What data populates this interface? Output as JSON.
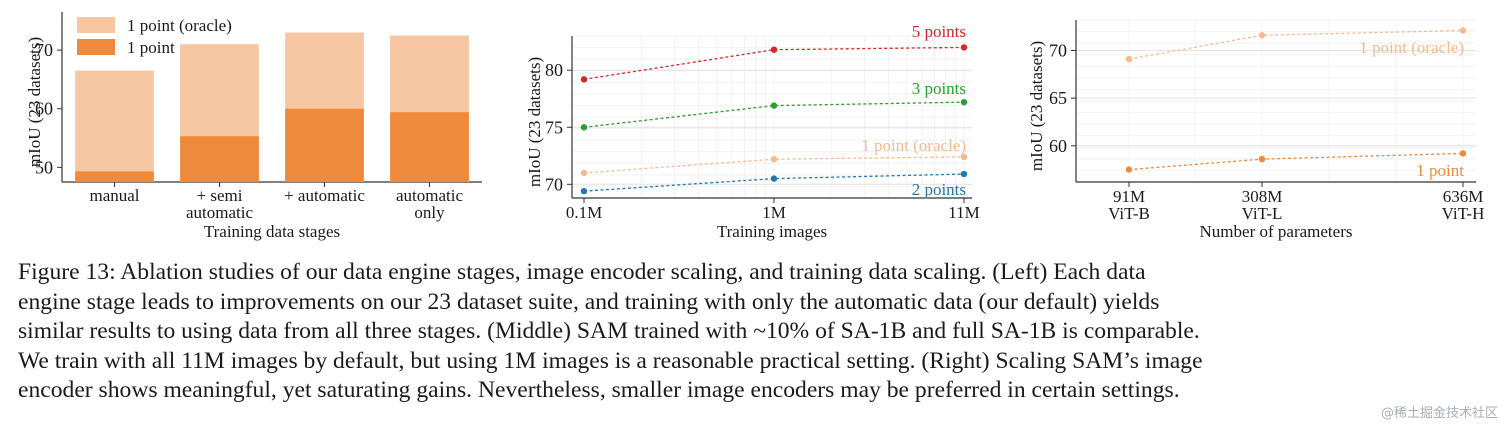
{
  "chart_data": [
    {
      "type": "bar",
      "categories": [
        "manual",
        "+ semi\nautomatic",
        "+ automatic",
        "automatic\nonly"
      ],
      "series": [
        {
          "name": "1 point (oracle)",
          "values": [
            66.5,
            71.0,
            73.0,
            72.5
          ],
          "color": "#f7c6a3"
        },
        {
          "name": "1 point",
          "values": [
            49.3,
            55.3,
            60.0,
            59.4
          ],
          "color": "#ef8a3d"
        }
      ],
      "title": "",
      "xlabel": "Training data stages",
      "ylabel": "mIoU (23 datasets)",
      "ylim": [
        47.5,
        76.5
      ],
      "yticks": [
        50,
        60,
        70
      ],
      "grid": false,
      "legend": "top-left"
    },
    {
      "type": "line",
      "x": [
        "0.1M",
        "1M",
        "11M"
      ],
      "series": [
        {
          "name": "5 points",
          "values": [
            79.2,
            81.8,
            82.0
          ],
          "color": "#d62728"
        },
        {
          "name": "3 points",
          "values": [
            75.0,
            76.9,
            77.2
          ],
          "color": "#2ca02c"
        },
        {
          "name": "1 point (oracle)",
          "values": [
            71.0,
            72.2,
            72.4
          ],
          "color": "#f7b98d"
        },
        {
          "name": "2 points",
          "values": [
            69.4,
            70.5,
            70.9
          ],
          "color": "#1f77b4"
        }
      ],
      "title": "",
      "xlabel": "Training images",
      "ylabel": "mIoU (23 datasets)",
      "ylim": [
        68.8,
        83.0
      ],
      "yticks": [
        70,
        75,
        80
      ],
      "xscale": "log",
      "grid": true,
      "legend": "inline labels"
    },
    {
      "type": "line",
      "x": [
        "91M\nViT-B",
        "308M\nViT-L",
        "636M\nViT-H"
      ],
      "x_values": [
        91,
        308,
        636
      ],
      "series": [
        {
          "name": "1 point (oracle)",
          "values": [
            69.1,
            71.6,
            72.1
          ],
          "color": "#f7b98d"
        },
        {
          "name": "1 point",
          "values": [
            57.5,
            58.6,
            59.2
          ],
          "color": "#ef8a3d"
        }
      ],
      "title": "",
      "xlabel": "Number of parameters",
      "ylabel": "mIoU (23 datasets)",
      "ylim": [
        56.2,
        73.2
      ],
      "yticks": [
        60,
        65,
        70
      ],
      "grid": true,
      "legend": "inline labels"
    }
  ],
  "caption": {
    "lines": [
      "Figure 13: Ablation studies of our data engine stages, image encoder scaling, and training data scaling. (Left) Each data",
      "engine stage leads to improvements on our 23 dataset suite, and training with only the automatic data (our default) yields",
      "similar results to using data from all three stages. (Middle) SAM trained with ~10% of SA-1B and full SA-1B is comparable.",
      "We train with all 11M images by default, but using 1M images is a reasonable practical setting. (Right) Scaling SAM’s image",
      "encoder shows meaningful, yet saturating gains. Nevertheless, smaller image encoders may be preferred in certain settings."
    ]
  },
  "watermark": "@稀土掘金技术社区"
}
